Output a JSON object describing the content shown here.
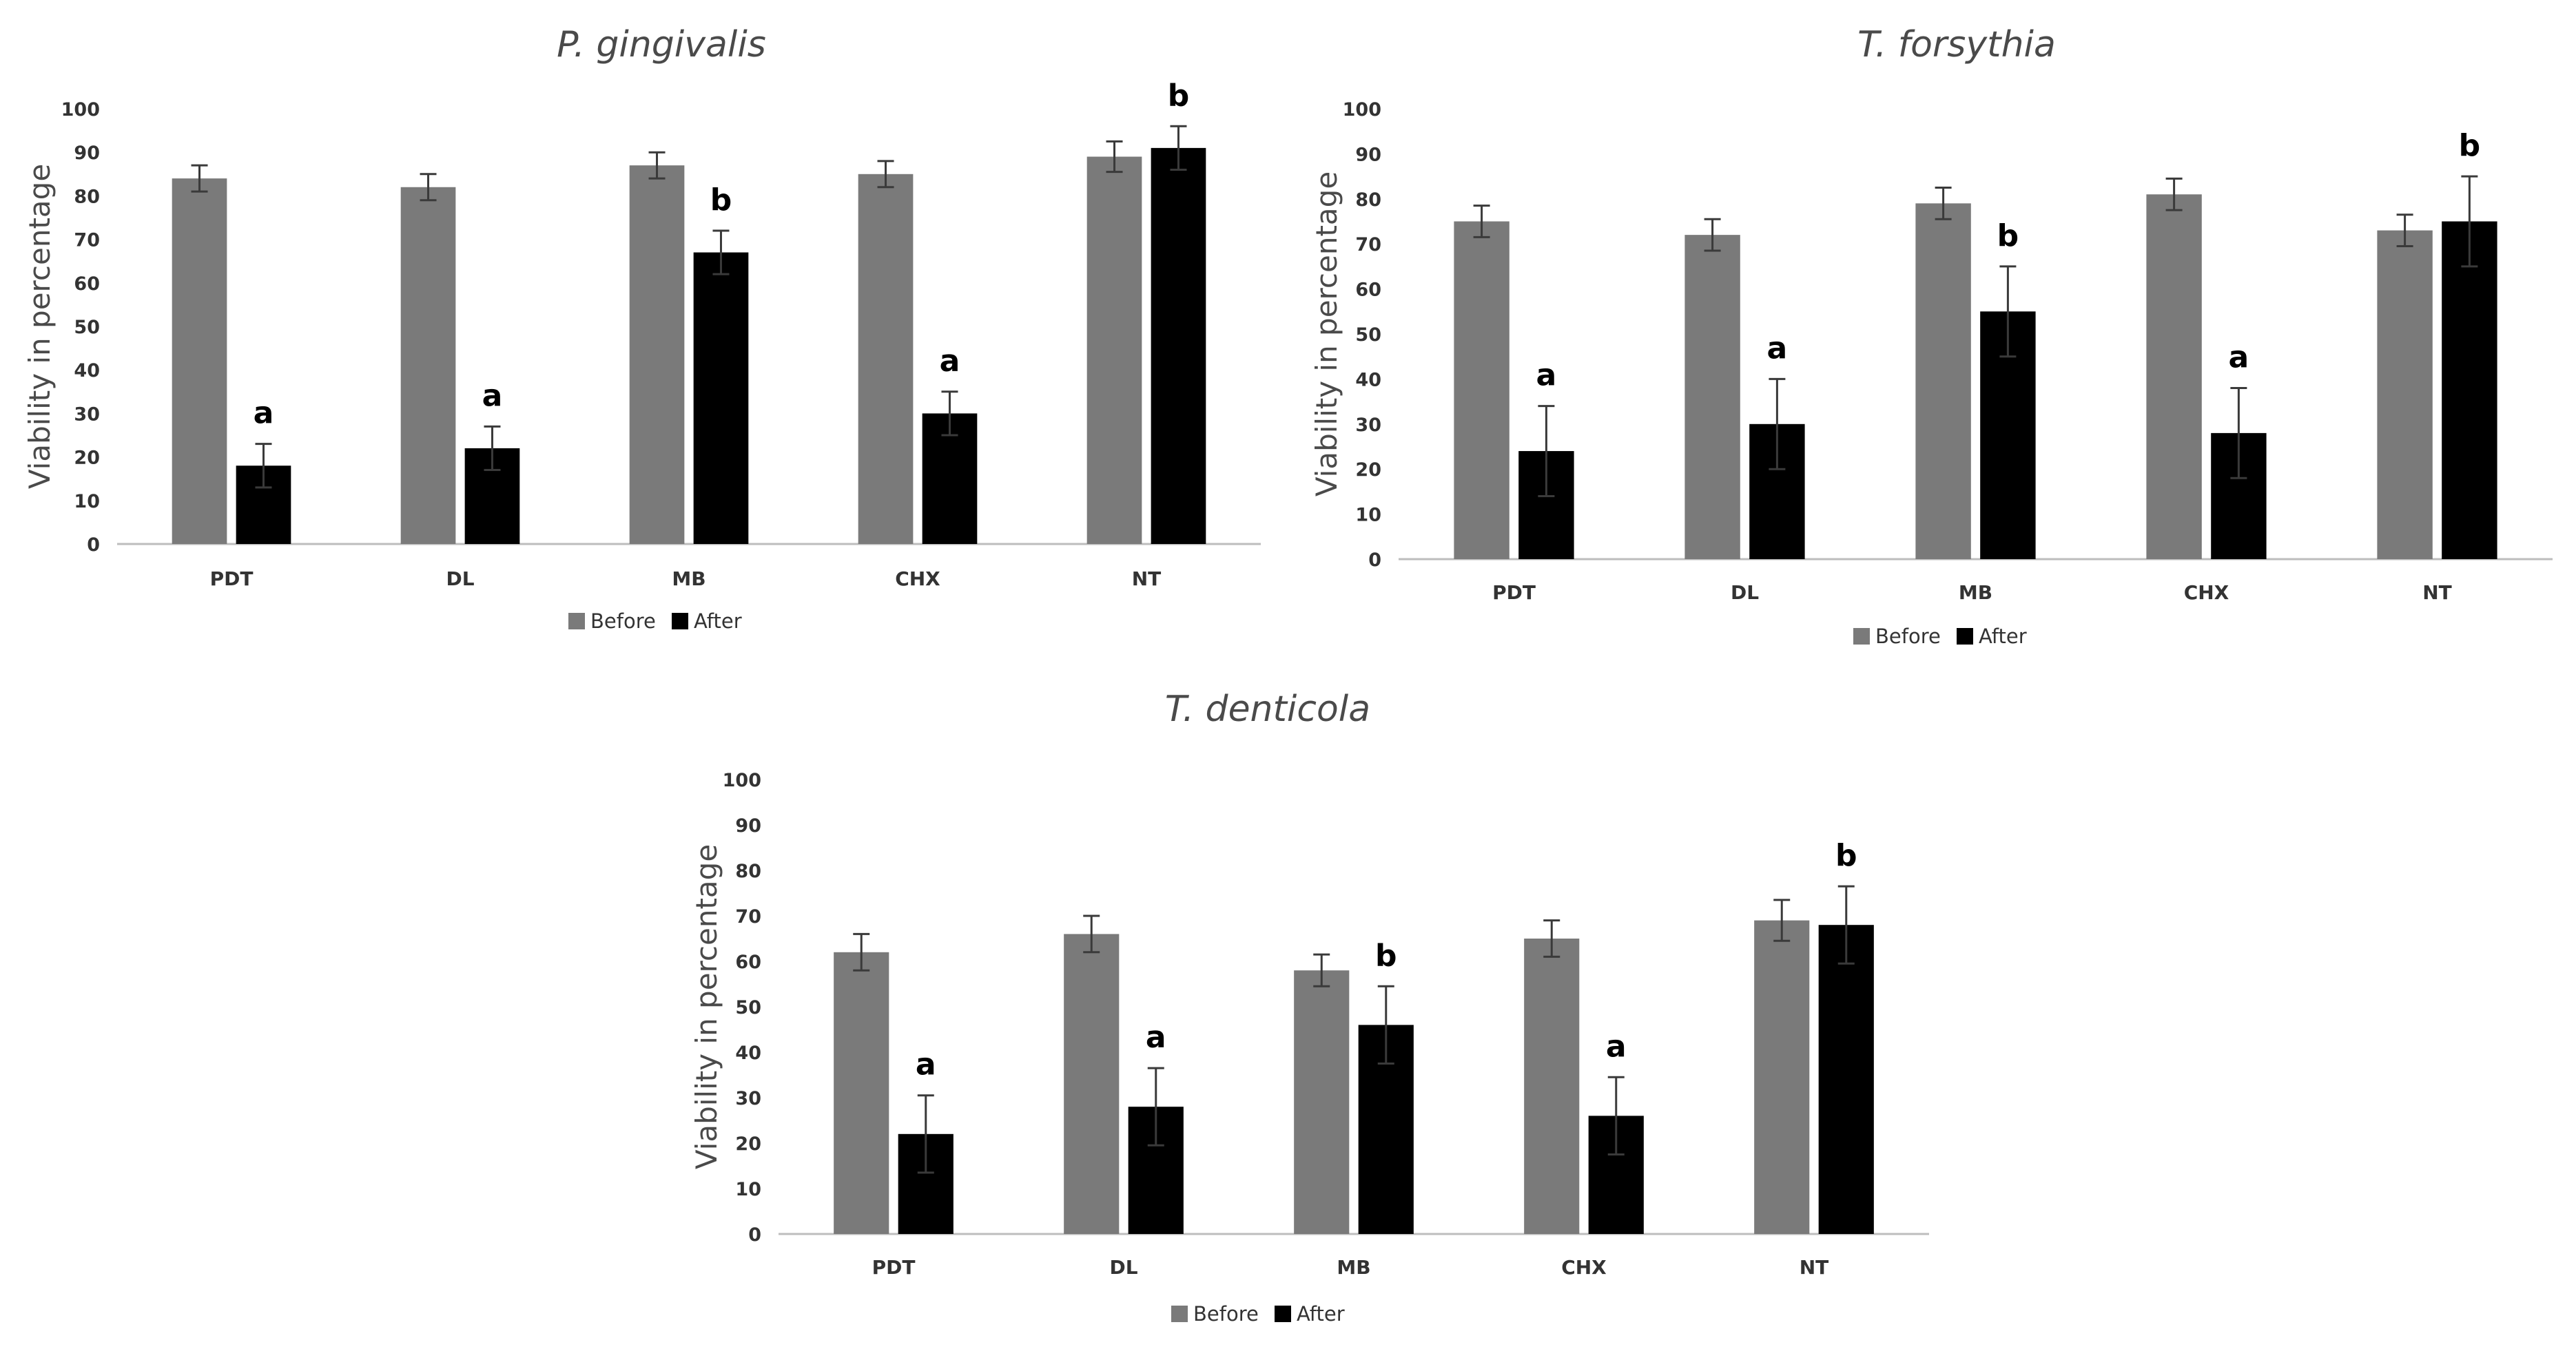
{
  "colors": {
    "before": "#7a7a7a",
    "after": "#000000"
  },
  "chart_data": [
    {
      "type": "bar",
      "title": "P. gingivalis",
      "ylabel": "Viability in percentage",
      "xlabel": "",
      "ylim": [
        0,
        100
      ],
      "yticks": [
        "0",
        "10",
        "20",
        "30",
        "40",
        "50",
        "60",
        "70",
        "80",
        "90",
        "100"
      ],
      "categories": [
        "PDT",
        "DL",
        "MB",
        "CHX",
        "NT"
      ],
      "series": [
        {
          "name": "Before",
          "values": [
            84,
            82,
            87,
            85,
            89
          ],
          "errors": [
            3,
            3,
            3,
            3,
            3.5
          ]
        },
        {
          "name": "After",
          "values": [
            18,
            22,
            67,
            30,
            91
          ],
          "errors": [
            5,
            5,
            5,
            5,
            5
          ]
        }
      ],
      "annotations": [
        "a",
        "a",
        "b",
        "a",
        "b"
      ],
      "legend": "bottom-center"
    },
    {
      "type": "bar",
      "title": "T. forsythia",
      "ylabel": "Viability in percentage",
      "xlabel": "",
      "ylim": [
        0,
        100
      ],
      "yticks": [
        "0",
        "10",
        "20",
        "30",
        "40",
        "50",
        "60",
        "70",
        "80",
        "90",
        "100"
      ],
      "categories": [
        "PDT",
        "DL",
        "MB",
        "CHX",
        "NT"
      ],
      "series": [
        {
          "name": "Before",
          "values": [
            75,
            72,
            79,
            81,
            73
          ],
          "errors": [
            3.5,
            3.5,
            3.5,
            3.5,
            3.5
          ]
        },
        {
          "name": "After",
          "values": [
            24,
            30,
            55,
            28,
            75
          ],
          "errors": [
            10,
            10,
            10,
            10,
            10
          ]
        }
      ],
      "annotations": [
        "a",
        "a",
        "b",
        "a",
        "b"
      ],
      "legend": "bottom-center"
    },
    {
      "type": "bar",
      "title": "T. denticola",
      "ylabel": "Viability in percentage",
      "xlabel": "",
      "ylim": [
        0,
        100
      ],
      "yticks": [
        "0",
        "10",
        "20",
        "30",
        "40",
        "50",
        "60",
        "70",
        "80",
        "90",
        "100"
      ],
      "categories": [
        "PDT",
        "DL",
        "MB",
        "CHX",
        "NT"
      ],
      "series": [
        {
          "name": "Before",
          "values": [
            62,
            66,
            58,
            65,
            69
          ],
          "errors": [
            4,
            4,
            3.5,
            4,
            4.5
          ]
        },
        {
          "name": "After",
          "values": [
            22,
            28,
            46,
            26,
            68
          ],
          "errors": [
            8.5,
            8.5,
            8.5,
            8.5,
            8.5
          ]
        }
      ],
      "annotations": [
        "a",
        "a",
        "b",
        "a",
        "b"
      ],
      "legend": "bottom-center"
    }
  ]
}
